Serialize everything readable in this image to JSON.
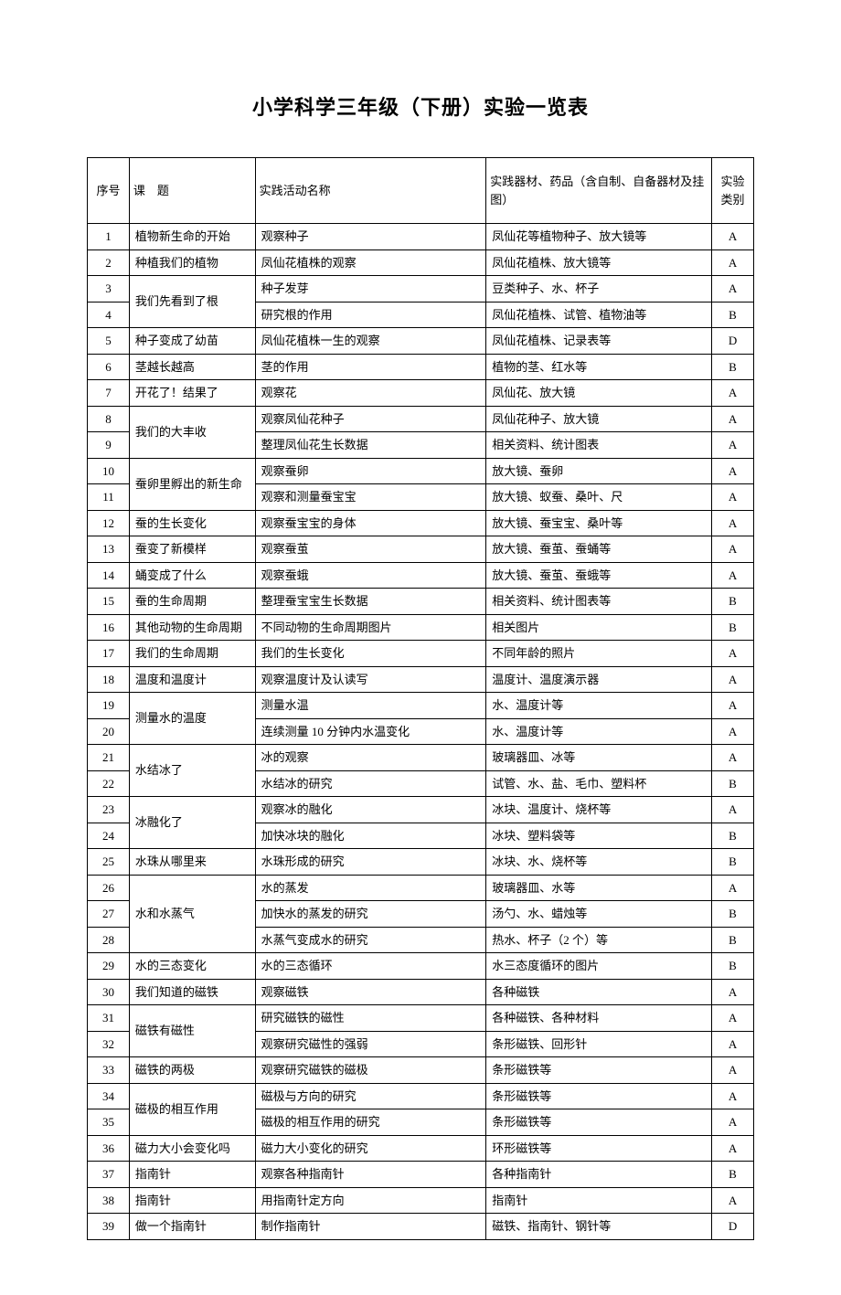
{
  "title": "小学科学三年级（下册）实验一览表",
  "headers": {
    "num": "序号",
    "topic": "课　题",
    "activity": "实践活动名称",
    "material": "实践器材、药品（含自制、自备器材及挂图）",
    "type": "实验类别"
  },
  "rows": [
    {
      "num": "1",
      "topic": "植物新生命的开始",
      "activity": "观察种子",
      "material": "凤仙花等植物种子、放大镜等",
      "type": "A"
    },
    {
      "num": "2",
      "topic": "种植我们的植物",
      "activity": "凤仙花植株的观察",
      "material": "凤仙花植株、放大镜等",
      "type": "A"
    },
    {
      "num": "3",
      "topic": "我们先看到了根",
      "rowspan": 2,
      "activity": "种子发芽",
      "material": "豆类种子、水、杯子",
      "type": "A"
    },
    {
      "num": "4",
      "activity": "研究根的作用",
      "material": "凤仙花植株、试管、植物油等",
      "type": "B"
    },
    {
      "num": "5",
      "topic": "种子变成了幼苗",
      "activity": "凤仙花植株一生的观察",
      "material": "凤仙花植株、记录表等",
      "type": "D"
    },
    {
      "num": "6",
      "topic": "茎越长越高",
      "activity": "茎的作用",
      "material": "植物的茎、红水等",
      "type": "B"
    },
    {
      "num": "7",
      "topic": "开花了！结果了",
      "activity": "观察花",
      "material": "凤仙花、放大镜",
      "type": "A"
    },
    {
      "num": "8",
      "topic": "我们的大丰收",
      "rowspan": 2,
      "activity": "观察凤仙花种子",
      "material": "凤仙花种子、放大镜",
      "type": "A"
    },
    {
      "num": "9",
      "activity": "整理凤仙花生长数据",
      "material": "相关资料、统计图表",
      "type": "A"
    },
    {
      "num": "10",
      "topic": "蚕卵里孵出的新生命",
      "rowspan": 2,
      "activity": "观察蚕卵",
      "material": "放大镜、蚕卵",
      "type": "A"
    },
    {
      "num": "11",
      "activity": "观察和测量蚕宝宝",
      "material": "放大镜、蚁蚕、桑叶、尺",
      "type": "A"
    },
    {
      "num": "12",
      "topic": "蚕的生长变化",
      "activity": "观察蚕宝宝的身体",
      "material": "放大镜、蚕宝宝、桑叶等",
      "type": "A"
    },
    {
      "num": "13",
      "topic": "蚕变了新模样",
      "activity": "观察蚕茧",
      "material": "放大镜、蚕茧、蚕蛹等",
      "type": "A"
    },
    {
      "num": "14",
      "topic": "蛹变成了什么",
      "activity": "观察蚕蛾",
      "material": "放大镜、蚕茧、蚕蛾等",
      "type": "A"
    },
    {
      "num": "15",
      "topic": "蚕的生命周期",
      "activity": "整理蚕宝宝生长数据",
      "material": "相关资料、统计图表等",
      "type": "B"
    },
    {
      "num": "16",
      "topic": "其他动物的生命周期",
      "activity": "不同动物的生命周期图片",
      "material": "相关图片",
      "type": "B"
    },
    {
      "num": "17",
      "topic": "我们的生命周期",
      "activity": "我们的生长变化",
      "material": "不同年龄的照片",
      "type": "A"
    },
    {
      "num": "18",
      "topic": "温度和温度计",
      "activity": "观察温度计及认读写",
      "material": "温度计、温度演示器",
      "type": "A"
    },
    {
      "num": "19",
      "topic": "测量水的温度",
      "rowspan": 2,
      "activity": "测量水温",
      "material": "水、温度计等",
      "type": "A"
    },
    {
      "num": "20",
      "activity": "连续测量 10 分钟内水温变化",
      "material": "水、温度计等",
      "type": "A"
    },
    {
      "num": "21",
      "topic": "水结冰了",
      "rowspan": 2,
      "activity": "冰的观察",
      "material": "玻璃器皿、冰等",
      "type": "A"
    },
    {
      "num": "22",
      "activity": "水结冰的研究",
      "material": "试管、水、盐、毛巾、塑料杯",
      "type": "B"
    },
    {
      "num": "23",
      "topic": "冰融化了",
      "rowspan": 2,
      "activity": "观察冰的融化",
      "material": "冰块、温度计、烧杯等",
      "type": "A"
    },
    {
      "num": "24",
      "activity": "加快冰块的融化",
      "material": "冰块、塑料袋等",
      "type": "B"
    },
    {
      "num": "25",
      "topic": "水珠从哪里来",
      "activity": "水珠形成的研究",
      "material": "冰块、水、烧杯等",
      "type": "B"
    },
    {
      "num": "26",
      "topic": "水和水蒸气",
      "rowspan": 3,
      "activity": "水的蒸发",
      "material": "玻璃器皿、水等",
      "type": "A"
    },
    {
      "num": "27",
      "activity": "加快水的蒸发的研究",
      "material": "汤勺、水、蜡烛等",
      "type": "B"
    },
    {
      "num": "28",
      "activity": "水蒸气变成水的研究",
      "material": "热水、杯子（2 个）等",
      "type": "B"
    },
    {
      "num": "29",
      "topic": "水的三态变化",
      "activity": "水的三态循环",
      "material": "水三态度循环的图片",
      "type": "B"
    },
    {
      "num": "30",
      "topic": "我们知道的磁铁",
      "activity": "观察磁铁",
      "material": "各种磁铁",
      "type": "A"
    },
    {
      "num": "31",
      "topic": "磁铁有磁性",
      "rowspan": 2,
      "activity": "研究磁铁的磁性",
      "material": "各种磁铁、各种材料",
      "type": "A"
    },
    {
      "num": "32",
      "activity": "观察研究磁性的强弱",
      "material": "条形磁铁、回形针",
      "type": "A"
    },
    {
      "num": "33",
      "topic": "磁铁的两极",
      "activity": "观察研究磁铁的磁极",
      "material": "条形磁铁等",
      "type": "A"
    },
    {
      "num": "34",
      "topic": "磁极的相互作用",
      "rowspan": 2,
      "activity": "磁极与方向的研究",
      "material": "条形磁铁等",
      "type": "A"
    },
    {
      "num": "35",
      "activity": "磁极的相互作用的研究",
      "material": "条形磁铁等",
      "type": "A"
    },
    {
      "num": "36",
      "topic": "磁力大小会变化吗",
      "activity": "磁力大小变化的研究",
      "material": "环形磁铁等",
      "type": "A"
    },
    {
      "num": "37",
      "topic": "指南针",
      "activity": "观察各种指南针",
      "material": "各种指南针",
      "type": "B"
    },
    {
      "num": "38",
      "topic": "指南针",
      "activity": "用指南针定方向",
      "material": "指南针",
      "type": "A"
    },
    {
      "num": "39",
      "topic": "做一个指南针",
      "activity": "制作指南针",
      "material": "磁铁、指南针、钢针等",
      "type": "D"
    }
  ]
}
